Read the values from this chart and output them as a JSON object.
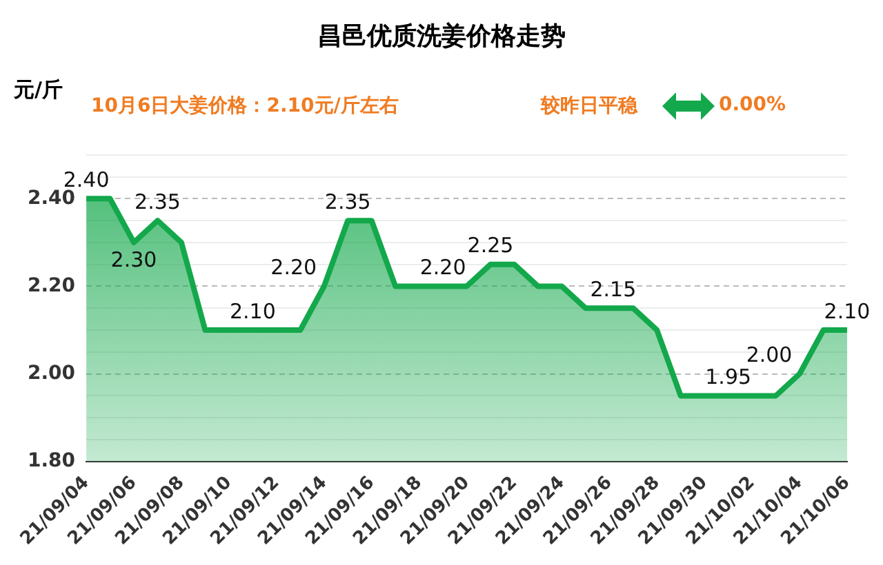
{
  "chart_data": {
    "type": "area",
    "title": "昌邑优质洗姜价格走势",
    "ylabel": "元/斤",
    "annotations": [
      "10月6日大姜价格：2.10元/斤左右",
      "较昨日平稳",
      "0.00%"
    ],
    "categories": [
      "21/09/04",
      null,
      "21/09/06",
      null,
      "21/09/08",
      null,
      "21/09/10",
      null,
      "21/09/12",
      null,
      "21/09/14",
      null,
      "21/09/16",
      null,
      "21/09/18",
      null,
      "21/09/20",
      null,
      "21/09/22",
      null,
      "21/09/24",
      null,
      "21/09/26",
      null,
      "21/09/28",
      null,
      "21/09/30",
      null,
      "21/10/02",
      null,
      "21/10/04",
      null,
      "21/10/06"
    ],
    "series": [
      {
        "color": "#13a84b",
        "values": [
          2.4,
          2.4,
          2.3,
          2.35,
          2.3,
          2.1,
          2.1,
          2.1,
          2.1,
          2.1,
          2.2,
          2.35,
          2.35,
          2.2,
          2.2,
          2.2,
          2.2,
          2.25,
          2.25,
          2.2,
          2.2,
          2.15,
          2.15,
          2.15,
          2.1,
          1.95,
          1.95,
          1.95,
          1.95,
          1.95,
          2.0,
          2.1,
          2.1
        ],
        "value_labels": [
          "2.40",
          null,
          "2.30",
          "2.35",
          null,
          null,
          null,
          "2.10",
          null,
          null,
          "2.20",
          "2.35",
          null,
          null,
          null,
          "2.20",
          null,
          "2.25",
          null,
          null,
          null,
          "2.15",
          null,
          null,
          null,
          null,
          null,
          "1.95",
          null,
          null,
          "2.00",
          null,
          "2.10"
        ]
      }
    ],
    "ylim": [
      1.8,
      2.5
    ],
    "yticks": [
      "1.80",
      {
        "value": 1.85,
        "label": null
      },
      {
        "value": 1.9,
        "label": null
      },
      {
        "value": 1.95,
        "label": null
      },
      "2.00",
      {
        "value": 2.05,
        "label": null
      },
      {
        "value": 2.1,
        "label": null
      },
      {
        "value": 2.15,
        "label": null
      },
      "2.20",
      {
        "value": 2.25,
        "label": null
      },
      {
        "value": 2.3,
        "label": null
      },
      {
        "value": 2.35,
        "label": null
      },
      "2.40",
      {
        "value": 2.45,
        "label": null
      },
      {
        "value": 2.5,
        "label": null
      }
    ],
    "grid": "y",
    "legend": false,
    "marker": "none",
    "line_style": "solid"
  }
}
